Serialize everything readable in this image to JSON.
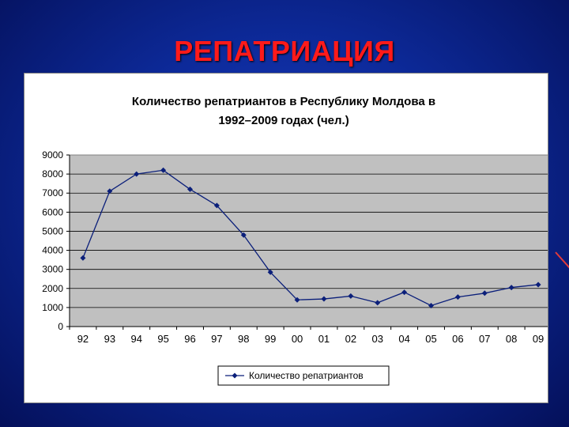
{
  "slide": {
    "title": "РЕПАТРИАЦИЯ"
  },
  "chart_data": {
    "type": "line",
    "title_line1": "Количество репатриантов в Республику Молдова в",
    "title_line2": "1992–2009 годах (чел.)",
    "xlabel": "",
    "ylabel": "",
    "categories": [
      "92",
      "93",
      "94",
      "95",
      "96",
      "97",
      "98",
      "99",
      "00",
      "01",
      "02",
      "03",
      "04",
      "05",
      "06",
      "07",
      "08",
      "09"
    ],
    "yticks": [
      "0",
      "1000",
      "2000",
      "3000",
      "4000",
      "5000",
      "6000",
      "7000",
      "8000",
      "9000"
    ],
    "ylim": [
      0,
      9000
    ],
    "grid": true,
    "legend_position": "bottom",
    "series": [
      {
        "name": "Количество репатриантов",
        "color": "#0b1f7a",
        "values": [
          3600,
          7100,
          8000,
          8200,
          7200,
          6350,
          4800,
          2850,
          1400,
          1450,
          1600,
          1250,
          1800,
          1100,
          1550,
          1750,
          2050,
          2200
        ]
      }
    ],
    "plot_background": "#c0c0c0"
  }
}
